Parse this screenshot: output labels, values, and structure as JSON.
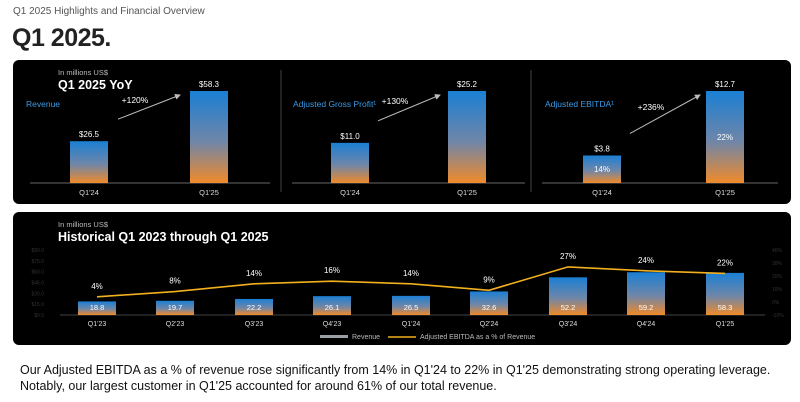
{
  "header": {
    "supertitle": "Q1 2025 Highlights and Financial Overview",
    "title": "Q1 2025."
  },
  "top_panel": {
    "units": "In millions US$",
    "title": "Q1 2025 YoY"
  },
  "bottom_panel": {
    "units": "In millions US$",
    "title": "Historical Q1 2023 through Q1 2025"
  },
  "footer": {
    "text": "Our Adjusted EBITDA as a % of revenue rose significantly from 14% in Q1'24 to 22% in Q1'25 demonstrating strong operating leverage. Notably, our largest customer in Q1'25 accounted for around 61% of our total revenue."
  },
  "colors": {
    "bar_top": "#1a7fd4",
    "bar_bottom": "#f08a2a",
    "line": "#f2b01e",
    "legend_revenue": "#9aa0a6",
    "panel_bg": "#000000"
  },
  "chart_data": [
    {
      "type": "bar",
      "title": "Revenue",
      "categories": [
        "Q1'24",
        "Q1'25"
      ],
      "values": [
        26.5,
        58.3
      ],
      "data_labels": [
        "$26.5",
        "$58.3"
      ],
      "growth_label": "+120%"
    },
    {
      "type": "bar",
      "title": "Adjusted Gross Profit¹",
      "categories": [
        "Q1'24",
        "Q1'25"
      ],
      "values": [
        11.0,
        25.2
      ],
      "data_labels": [
        "$11.0",
        "$25.2"
      ],
      "growth_label": "+130%"
    },
    {
      "type": "bar",
      "title": "Adjusted EBITDA¹",
      "categories": [
        "Q1'24",
        "Q1'25"
      ],
      "values": [
        3.8,
        12.7
      ],
      "data_labels": [
        "$3.8",
        "$12.7"
      ],
      "margin_labels": [
        "14%",
        "22%"
      ],
      "growth_label": "+236%"
    },
    {
      "type": "bar",
      "title": "Historical Q1 2023 through Q1 2025",
      "categories": [
        "Q1'23",
        "Q2'23",
        "Q3'23",
        "Q4'23",
        "Q1'24",
        "Q2'24",
        "Q3'24",
        "Q4'24",
        "Q1'25"
      ],
      "series": [
        {
          "name": "Revenue",
          "type": "bar",
          "values": [
            18.8,
            19.7,
            22.2,
            26.1,
            26.5,
            32.6,
            52.2,
            59.2,
            58.3
          ],
          "data_labels": [
            "18.8",
            "19.7",
            "22.2",
            "26.1",
            "26.5",
            "32.6",
            "52.2",
            "59.2",
            "58.3"
          ]
        },
        {
          "name": "Adjusted EBITDA as a % of Revenue",
          "type": "line",
          "values": [
            4,
            8,
            14,
            16,
            14,
            9,
            27,
            24,
            22
          ],
          "data_labels": [
            "4%",
            "8%",
            "14%",
            "16%",
            "14%",
            "9%",
            "27%",
            "24%",
            "22%"
          ]
        }
      ],
      "ylim": [
        0,
        90
      ],
      "y2lim": [
        -10,
        40
      ],
      "legend": [
        "Revenue",
        "Adjusted EBITDA as a % of Revenue"
      ],
      "legend_position": "bottom"
    }
  ]
}
